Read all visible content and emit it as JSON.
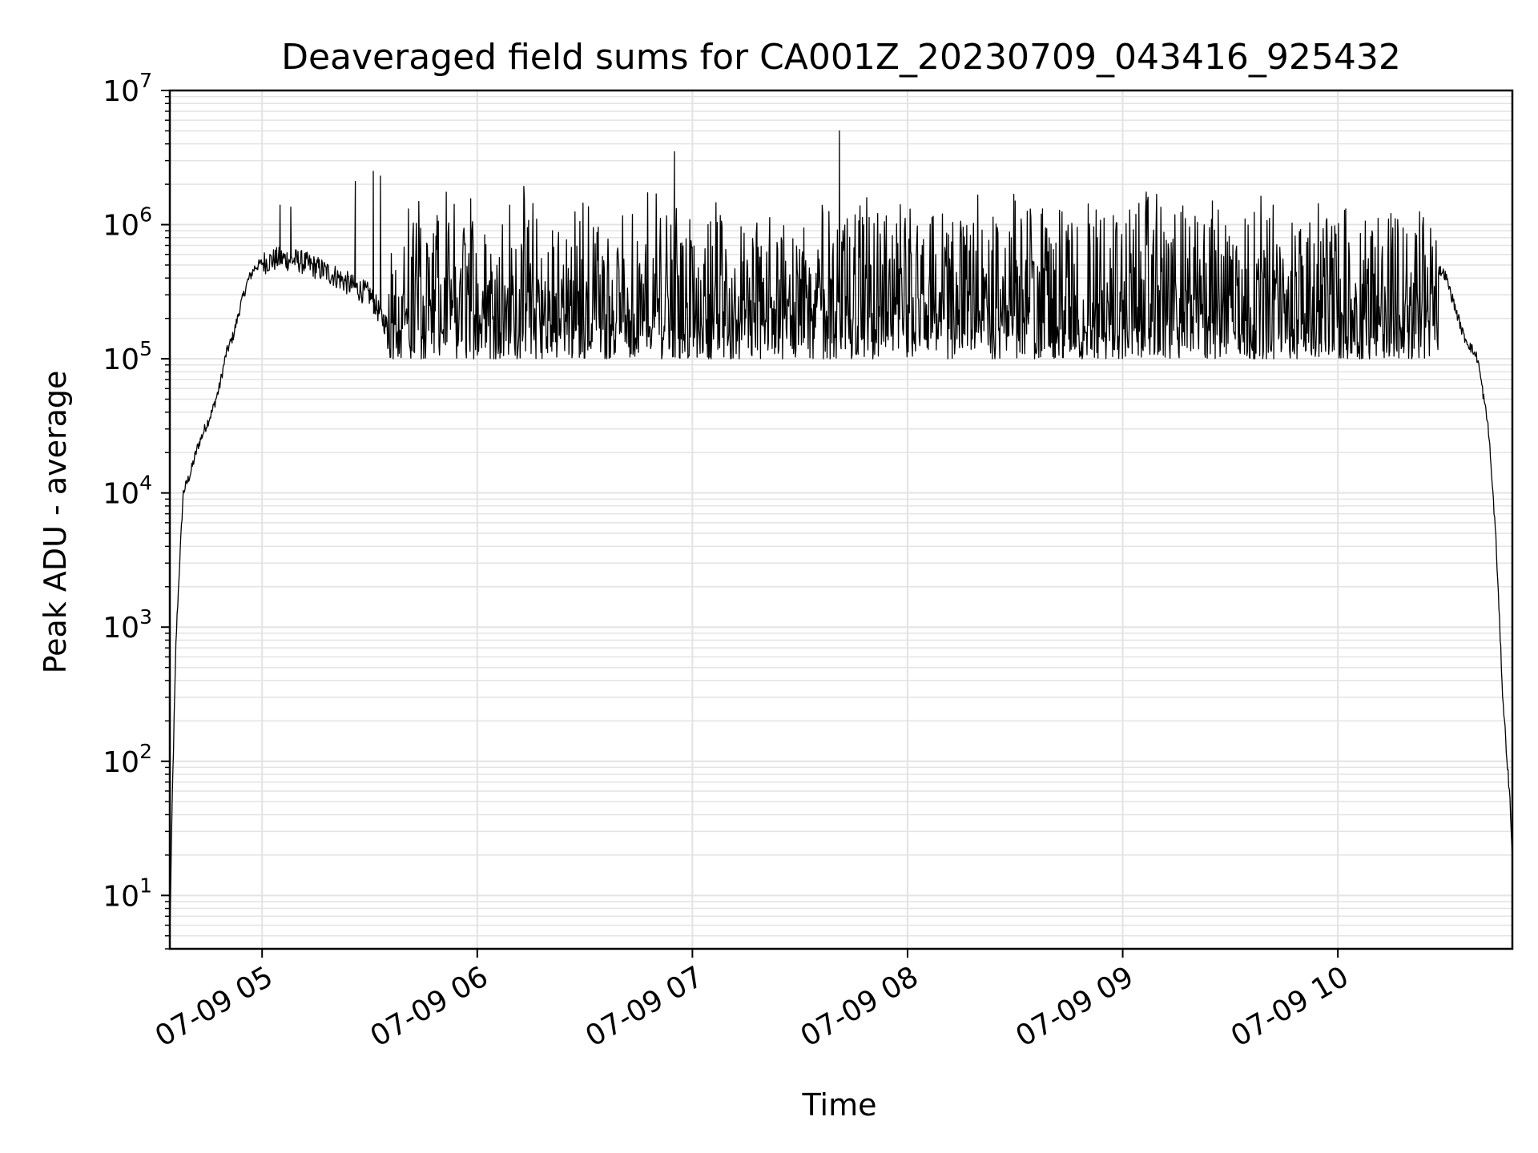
{
  "chart_data": {
    "type": "line",
    "title": "Deaveraged field sums for CA001Z_20230709_043416_925432",
    "xlabel": "Time",
    "ylabel": "Peak ADU - average",
    "yscale": "log",
    "ylim": [
      4,
      10000000
    ],
    "xlim": [
      "2023-07-09 04:34:16",
      "2023-07-09 10:48:40"
    ],
    "grid": true,
    "line_color": "#000000",
    "grid_color": "#e3e3e3",
    "x_ticks": [
      {
        "label": "07-09 05",
        "value": "2023-07-09 05:00"
      },
      {
        "label": "07-09 06",
        "value": "2023-07-09 06:00"
      },
      {
        "label": "07-09 07",
        "value": "2023-07-09 07:00"
      },
      {
        "label": "07-09 08",
        "value": "2023-07-09 08:00"
      },
      {
        "label": "07-09 09",
        "value": "2023-07-09 09:00"
      },
      {
        "label": "07-09 10",
        "value": "2023-07-09 10:00"
      }
    ],
    "y_ticks": [
      {
        "base": "10",
        "exp": "1",
        "value": 10
      },
      {
        "base": "10",
        "exp": "2",
        "value": 100
      },
      {
        "base": "10",
        "exp": "3",
        "value": 1000
      },
      {
        "base": "10",
        "exp": "4",
        "value": 10000
      },
      {
        "base": "10",
        "exp": "5",
        "value": 100000
      },
      {
        "base": "10",
        "exp": "6",
        "value": 1000000
      },
      {
        "base": "10",
        "exp": "7",
        "value": 10000000
      }
    ],
    "series": [
      {
        "points": [
          [
            "2023-07-09 04:34:16",
            5
          ],
          [
            "2023-07-09 04:35:00",
            60
          ],
          [
            "2023-07-09 04:36:00",
            800
          ],
          [
            "2023-07-09 04:37:00",
            3000
          ],
          [
            "2023-07-09 04:38:00",
            10000
          ],
          [
            "2023-07-09 04:40:00",
            14000
          ],
          [
            "2023-07-09 04:42:00",
            22000
          ],
          [
            "2023-07-09 04:44:00",
            30000
          ],
          [
            "2023-07-09 04:46:00",
            40000
          ],
          [
            "2023-07-09 04:48:00",
            60000
          ],
          [
            "2023-07-09 04:50:00",
            110000
          ],
          [
            "2023-07-09 04:52:00",
            150000
          ],
          [
            "2023-07-09 04:54:00",
            250000
          ],
          [
            "2023-07-09 04:56:00",
            380000
          ],
          [
            "2023-07-09 04:58:00",
            480000
          ],
          [
            "2023-07-09 05:00:00",
            520000
          ],
          [
            "2023-07-09 05:05:00",
            560000
          ],
          [
            "2023-07-09 05:10:00",
            540000
          ],
          [
            "2023-07-09 05:15:00",
            480000
          ],
          [
            "2023-07-09 05:20:00",
            420000
          ],
          [
            "2023-07-09 05:25:00",
            350000
          ],
          [
            "2023-07-09 05:30:00",
            300000
          ],
          [
            "2023-07-09 05:35:00",
            170000
          ],
          [
            "2023-07-09 05:40:00",
            160000
          ],
          [
            "2023-07-09 05:45:00",
            140000
          ],
          [
            "2023-07-09 05:50:00",
            130000
          ],
          [
            "2023-07-09 05:55:00",
            120000
          ],
          [
            "2023-07-09 06:00:00",
            250000
          ],
          [
            "2023-07-09 06:30:00",
            400000
          ],
          [
            "2023-07-09 07:00:00",
            380000
          ],
          [
            "2023-07-09 07:30:00",
            300000
          ],
          [
            "2023-07-09 07:40:00",
            900000
          ],
          [
            "2023-07-09 08:00:00",
            200000
          ],
          [
            "2023-07-09 08:30:00",
            200000
          ],
          [
            "2023-07-09 09:00:00",
            250000
          ],
          [
            "2023-07-09 09:30:00",
            280000
          ],
          [
            "2023-07-09 09:50:00",
            250000
          ],
          [
            "2023-07-09 10:00:00",
            350000
          ],
          [
            "2023-07-09 10:15:00",
            500000
          ],
          [
            "2023-07-09 10:25:00",
            550000
          ],
          [
            "2023-07-09 10:30:00",
            420000
          ],
          [
            "2023-07-09 10:35:00",
            150000
          ],
          [
            "2023-07-09 10:39:00",
            100000
          ],
          [
            "2023-07-09 10:42:00",
            30000
          ],
          [
            "2023-07-09 10:44:00",
            5000
          ],
          [
            "2023-07-09 10:46:00",
            300
          ],
          [
            "2023-07-09 10:48:00",
            50
          ],
          [
            "2023-07-09 10:48:40",
            20
          ]
        ],
        "peaks": [
          [
            "2023-07-09 05:05:00",
            1400000
          ],
          [
            "2023-07-09 05:08:00",
            1350000
          ],
          [
            "2023-07-09 05:26:00",
            2100000
          ],
          [
            "2023-07-09 05:31:00",
            2500000
          ],
          [
            "2023-07-09 05:33:00",
            2300000
          ],
          [
            "2023-07-09 06:55:00",
            3500000
          ],
          [
            "2023-07-09 07:41:00",
            5000000
          ],
          [
            "2023-07-09 08:30:00",
            1500000
          ],
          [
            "2023-07-09 09:25:00",
            1500000
          ]
        ]
      }
    ]
  }
}
